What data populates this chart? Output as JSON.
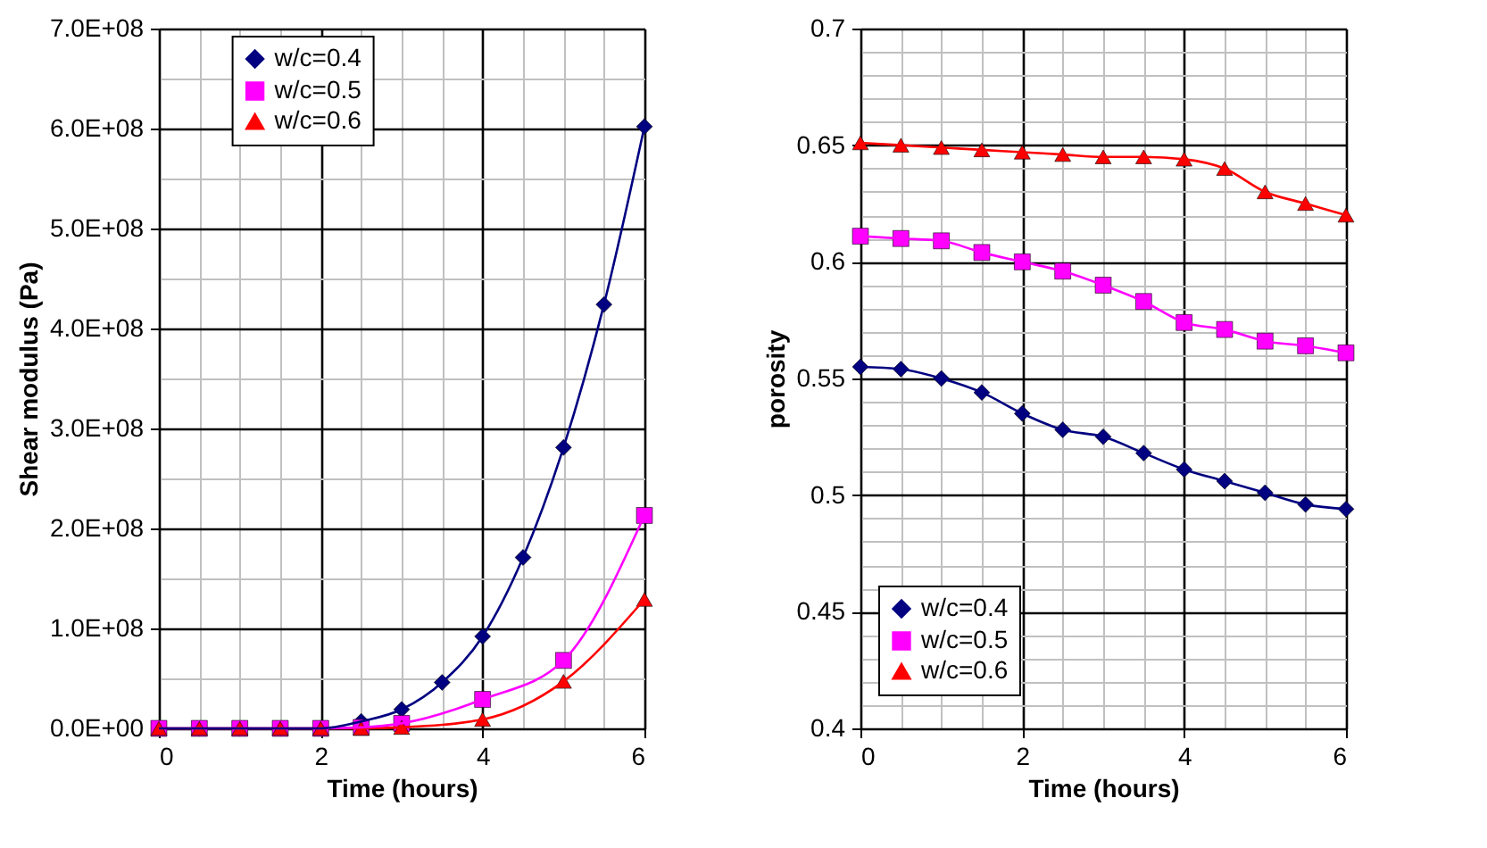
{
  "chart_data": [
    {
      "type": "line",
      "xlabel": "Time (hours)",
      "ylabel": "Shear modulus (Pa)",
      "grid": true,
      "legend": "top",
      "line_style": "solid",
      "xlim": [
        0,
        6
      ],
      "ylim": [
        0,
        700000000
      ],
      "xticks": [
        0,
        {
          "value": 0.5,
          "label": null
        },
        {
          "value": 1,
          "label": null
        },
        {
          "value": 1.5,
          "label": null
        },
        2,
        {
          "value": 2.5,
          "label": null
        },
        {
          "value": 3,
          "label": null
        },
        {
          "value": 3.5,
          "label": null
        },
        4,
        {
          "value": 4.5,
          "label": null
        },
        {
          "value": 5,
          "label": null
        },
        {
          "value": 5.5,
          "label": null
        },
        6
      ],
      "yticks": [
        {
          "value": 0,
          "label": "0.0E+00"
        },
        {
          "value": 50000000,
          "label": null
        },
        {
          "value": 100000000,
          "label": "1.0E+08"
        },
        {
          "value": 150000000,
          "label": null
        },
        {
          "value": 200000000,
          "label": "2.0E+08"
        },
        {
          "value": 250000000,
          "label": null
        },
        {
          "value": 300000000,
          "label": "3.0E+08"
        },
        {
          "value": 350000000,
          "label": null
        },
        {
          "value": 400000000,
          "label": "4.0E+08"
        },
        {
          "value": 450000000,
          "label": null
        },
        {
          "value": 500000000,
          "label": "5.0E+08"
        },
        {
          "value": 550000000,
          "label": null
        },
        {
          "value": 600000000,
          "label": "6.0E+08"
        },
        {
          "value": 650000000,
          "label": null
        },
        {
          "value": 700000000,
          "label": "7.0E+08"
        }
      ],
      "series": [
        {
          "name": "w/c=0.4",
          "color": "#000080",
          "marker": "diamond",
          "x": [
            0,
            0.5,
            1,
            1.5,
            2,
            2.5,
            3,
            3.5,
            4,
            4.5,
            5,
            5.5,
            6
          ],
          "values": [
            0,
            0,
            0,
            0,
            0,
            7000000,
            19000000,
            46000000,
            92000000,
            171000000,
            281000000,
            424000000,
            602000000
          ]
        },
        {
          "name": "w/c=0.5",
          "color": "#ff00ff",
          "marker": "square",
          "x": [
            0,
            0.5,
            1,
            1.5,
            2,
            2.5,
            3,
            4,
            5,
            6
          ],
          "values": [
            0,
            0,
            0,
            0,
            0,
            1000000,
            5000000,
            29000000,
            68000000,
            213000000
          ]
        },
        {
          "name": "w/c=0.6",
          "color": "#ff0000",
          "marker": "triangle",
          "x": [
            0,
            0.5,
            1,
            1.5,
            2,
            2.5,
            3,
            4,
            5,
            6
          ],
          "values": [
            0,
            0,
            0,
            0,
            0,
            0,
            1000000,
            9000000,
            47000000,
            129000000
          ]
        }
      ]
    },
    {
      "type": "line",
      "xlabel": "Time (hours)",
      "ylabel": "porosity",
      "grid": true,
      "legend": "bottom left",
      "line_style": "solid",
      "xlim": [
        0,
        6
      ],
      "ylim": [
        0.4,
        0.7
      ],
      "xticks": [
        0,
        {
          "value": 0.5,
          "label": null
        },
        {
          "value": 1,
          "label": null
        },
        {
          "value": 1.5,
          "label": null
        },
        2,
        {
          "value": 2.5,
          "label": null
        },
        {
          "value": 3,
          "label": null
        },
        {
          "value": 3.5,
          "label": null
        },
        4,
        {
          "value": 4.5,
          "label": null
        },
        {
          "value": 5,
          "label": null
        },
        {
          "value": 5.5,
          "label": null
        },
        6
      ],
      "yticks": [
        0.4,
        {
          "value": 0.41,
          "label": null
        },
        {
          "value": 0.42,
          "label": null
        },
        {
          "value": 0.43,
          "label": null
        },
        {
          "value": 0.44,
          "label": null
        },
        0.45,
        {
          "value": 0.46,
          "label": null
        },
        {
          "value": 0.47,
          "label": null
        },
        {
          "value": 0.48,
          "label": null
        },
        {
          "value": 0.49,
          "label": null
        },
        0.5,
        {
          "value": 0.51,
          "label": null
        },
        {
          "value": 0.52,
          "label": null
        },
        {
          "value": 0.53,
          "label": null
        },
        {
          "value": 0.54,
          "label": null
        },
        0.55,
        {
          "value": 0.56,
          "label": null
        },
        {
          "value": 0.57,
          "label": null
        },
        {
          "value": 0.58,
          "label": null
        },
        {
          "value": 0.59,
          "label": null
        },
        0.6,
        {
          "value": 0.61,
          "label": null
        },
        {
          "value": 0.62,
          "label": null
        },
        {
          "value": 0.63,
          "label": null
        },
        {
          "value": 0.64,
          "label": null
        },
        0.65,
        {
          "value": 0.66,
          "label": null
        },
        {
          "value": 0.67,
          "label": null
        },
        {
          "value": 0.68,
          "label": null
        },
        {
          "value": 0.69,
          "label": null
        },
        0.7
      ],
      "series": [
        {
          "name": "w/c=0.4",
          "color": "#000080",
          "marker": "diamond",
          "x": [
            0,
            0.5,
            1,
            1.5,
            2,
            2.5,
            3,
            3.5,
            4,
            4.5,
            5,
            5.5,
            6
          ],
          "values": [
            0.555,
            0.554,
            0.55,
            0.544,
            0.535,
            0.528,
            0.525,
            0.518,
            0.511,
            0.506,
            0.501,
            0.496,
            0.494
          ]
        },
        {
          "name": "w/c=0.5",
          "color": "#ff00ff",
          "marker": "square",
          "x": [
            0,
            0.5,
            1,
            1.5,
            2,
            2.5,
            3,
            3.5,
            4,
            4.5,
            5,
            5.5,
            6
          ],
          "values": [
            0.611,
            0.61,
            0.609,
            0.604,
            0.6,
            0.596,
            0.59,
            0.583,
            0.574,
            0.571,
            0.566,
            0.564,
            0.561
          ]
        },
        {
          "name": "w/c=0.6",
          "color": "#ff0000",
          "marker": "triangle",
          "x": [
            0,
            0.5,
            1,
            1.5,
            2,
            2.5,
            3,
            3.5,
            4,
            4.5,
            5,
            5.5,
            6
          ],
          "values": [
            0.651,
            0.65,
            0.649,
            0.648,
            0.647,
            0.646,
            0.645,
            0.645,
            0.644,
            0.64,
            0.63,
            0.625,
            0.62
          ]
        }
      ]
    }
  ]
}
